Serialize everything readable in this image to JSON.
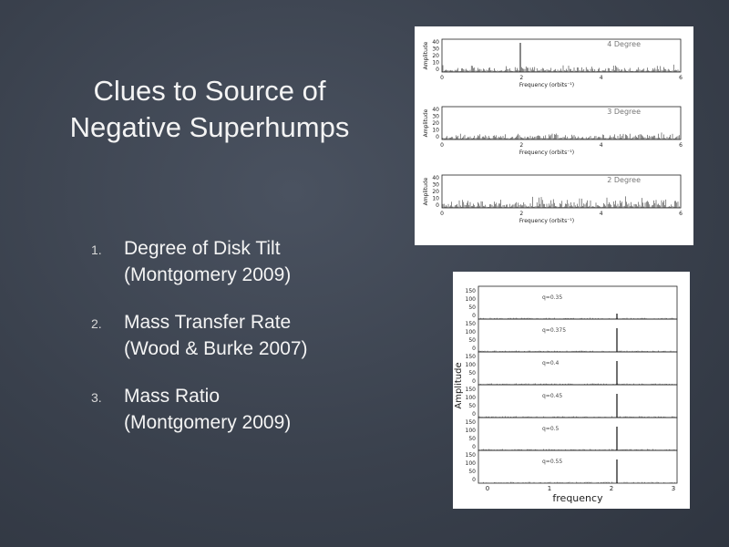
{
  "slide": {
    "title_lines": [
      "Clues to Source of",
      "Negative Superhumps"
    ],
    "items": [
      {
        "number": "1.",
        "lines": [
          "Degree of Disk Tilt",
          "(Montgomery 2009)"
        ]
      },
      {
        "number": "2.",
        "lines": [
          "Mass Transfer Rate",
          "(Wood & Burke 2007)"
        ]
      },
      {
        "number": "3.",
        "lines": [
          "Mass Ratio",
          "(Montgomery 2009)"
        ]
      }
    ]
  },
  "figure_tilt": {
    "panels": [
      {
        "label": "4 Degree"
      },
      {
        "label": "3 Degree"
      },
      {
        "label": "2 Degree"
      }
    ],
    "ylabel": "Amplitude",
    "xlabel": "Frequency (orbits⁻¹)",
    "yticks": [
      "40",
      "30",
      "20",
      "10",
      "0"
    ],
    "xticks": [
      "0",
      "2",
      "4",
      "6"
    ]
  },
  "figure_mass_ratio": {
    "panels": [
      {
        "label": "q=0.35"
      },
      {
        "label": "q=0.375"
      },
      {
        "label": "q=0.4"
      },
      {
        "label": "q=0.45"
      },
      {
        "label": "q=0.5"
      },
      {
        "label": "q=0.55"
      }
    ],
    "ylabel": "Amplitude",
    "xlabel": "frequency",
    "yticks": [
      "150",
      "100",
      "50",
      "0"
    ],
    "xticks": [
      "0",
      "1",
      "2",
      "3"
    ]
  }
}
